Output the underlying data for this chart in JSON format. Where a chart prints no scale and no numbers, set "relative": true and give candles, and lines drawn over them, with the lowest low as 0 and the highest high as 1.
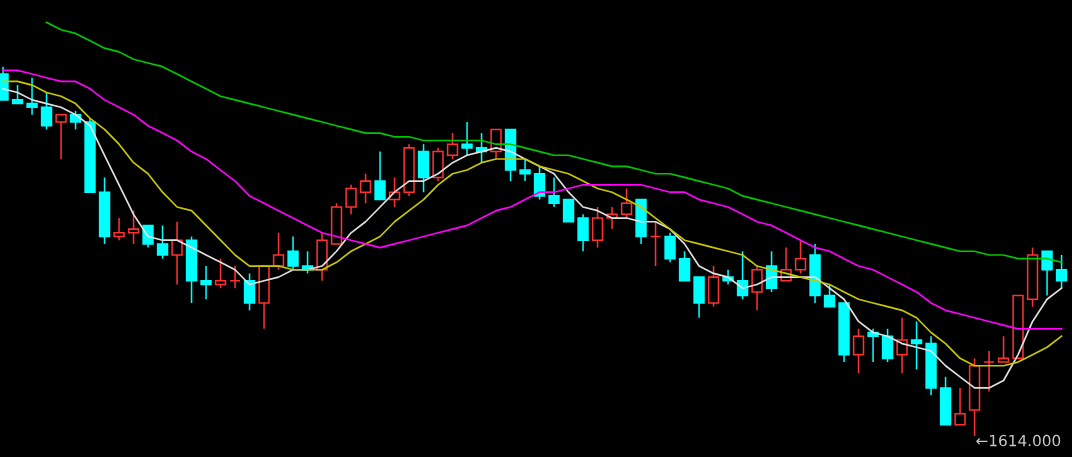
{
  "chart_data": {
    "type": "candlestick",
    "relative": true,
    "categories": [
      null,
      null,
      null,
      null,
      null,
      null,
      null,
      null,
      null,
      null,
      null,
      null,
      null,
      null,
      null,
      null,
      null,
      null,
      null,
      null,
      null,
      null,
      null,
      null,
      null,
      null,
      null,
      null,
      null,
      null,
      null,
      null,
      null,
      null,
      null,
      null,
      null,
      null,
      null,
      null,
      null,
      null,
      null,
      null,
      null,
      null,
      null,
      null,
      null,
      null,
      null,
      null,
      null,
      null,
      null,
      null,
      null,
      null,
      null,
      null,
      null,
      null,
      null,
      null,
      null,
      null,
      null,
      null,
      null,
      null,
      null,
      null,
      null,
      null
    ],
    "ohlc": [
      [
        0.98,
        1.0,
        0.91,
        0.91
      ],
      [
        0.91,
        0.95,
        0.9,
        0.9
      ],
      [
        0.9,
        0.97,
        0.87,
        0.89
      ],
      [
        0.89,
        0.93,
        0.83,
        0.84
      ],
      [
        0.85,
        0.87,
        0.75,
        0.87
      ],
      [
        0.87,
        0.88,
        0.83,
        0.85
      ],
      [
        0.85,
        0.86,
        0.66,
        0.66
      ],
      [
        0.66,
        0.7,
        0.52,
        0.54
      ],
      [
        0.54,
        0.59,
        0.53,
        0.55
      ],
      [
        0.55,
        0.61,
        0.52,
        0.56
      ],
      [
        0.57,
        0.57,
        0.51,
        0.52
      ],
      [
        0.52,
        0.57,
        0.48,
        0.49
      ],
      [
        0.49,
        0.58,
        0.41,
        0.53
      ],
      [
        0.53,
        0.54,
        0.36,
        0.42
      ],
      [
        0.42,
        0.46,
        0.37,
        0.41
      ],
      [
        0.41,
        0.48,
        0.4,
        0.42
      ],
      [
        0.42,
        0.46,
        0.4,
        0.42
      ],
      [
        0.42,
        0.44,
        0.34,
        0.36
      ],
      [
        0.36,
        0.46,
        0.29,
        0.46
      ],
      [
        0.46,
        0.55,
        0.45,
        0.49
      ],
      [
        0.5,
        0.54,
        0.45,
        0.46
      ],
      [
        0.46,
        0.5,
        0.44,
        0.45
      ],
      [
        0.45,
        0.55,
        0.42,
        0.53
      ],
      [
        0.52,
        0.63,
        0.52,
        0.62
      ],
      [
        0.62,
        0.68,
        0.6,
        0.67
      ],
      [
        0.66,
        0.71,
        0.63,
        0.69
      ],
      [
        0.69,
        0.77,
        0.64,
        0.64
      ],
      [
        0.64,
        0.7,
        0.62,
        0.66
      ],
      [
        0.66,
        0.79,
        0.65,
        0.78
      ],
      [
        0.77,
        0.79,
        0.66,
        0.7
      ],
      [
        0.7,
        0.78,
        0.69,
        0.77
      ],
      [
        0.76,
        0.82,
        0.75,
        0.79
      ],
      [
        0.79,
        0.85,
        0.76,
        0.78
      ],
      [
        0.78,
        0.82,
        0.74,
        0.77
      ],
      [
        0.77,
        0.83,
        0.75,
        0.83
      ],
      [
        0.83,
        0.83,
        0.69,
        0.72
      ],
      [
        0.72,
        0.75,
        0.69,
        0.71
      ],
      [
        0.71,
        0.73,
        0.64,
        0.65
      ],
      [
        0.65,
        0.7,
        0.62,
        0.63
      ],
      [
        0.64,
        0.64,
        0.58,
        0.58
      ],
      [
        0.59,
        0.6,
        0.5,
        0.53
      ],
      [
        0.53,
        0.62,
        0.51,
        0.59
      ],
      [
        0.59,
        0.62,
        0.56,
        0.6
      ],
      [
        0.6,
        0.67,
        0.59,
        0.63
      ],
      [
        0.64,
        0.64,
        0.52,
        0.54
      ],
      [
        0.54,
        0.58,
        0.46,
        0.54
      ],
      [
        0.54,
        0.55,
        0.47,
        0.48
      ],
      [
        0.48,
        0.5,
        0.42,
        0.42
      ],
      [
        0.43,
        0.43,
        0.32,
        0.36
      ],
      [
        0.36,
        0.46,
        0.35,
        0.43
      ],
      [
        0.43,
        0.45,
        0.41,
        0.42
      ],
      [
        0.42,
        0.5,
        0.37,
        0.38
      ],
      [
        0.39,
        0.46,
        0.34,
        0.45
      ],
      [
        0.46,
        0.5,
        0.39,
        0.4
      ],
      [
        0.42,
        0.51,
        0.42,
        0.45
      ],
      [
        0.45,
        0.53,
        0.44,
        0.48
      ],
      [
        0.49,
        0.52,
        0.36,
        0.38
      ],
      [
        0.38,
        0.41,
        0.35,
        0.35
      ],
      [
        0.36,
        0.36,
        0.2,
        0.22
      ],
      [
        0.22,
        0.29,
        0.17,
        0.27
      ],
      [
        0.28,
        0.29,
        0.2,
        0.27
      ],
      [
        0.27,
        0.29,
        0.2,
        0.21
      ],
      [
        0.22,
        0.32,
        0.17,
        0.26
      ],
      [
        0.26,
        0.31,
        0.18,
        0.25
      ],
      [
        0.25,
        0.27,
        0.11,
        0.13
      ],
      [
        0.13,
        0.16,
        0.03,
        0.03
      ],
      [
        0.03,
        0.13,
        0.03,
        0.06
      ],
      [
        0.07,
        0.21,
        0.0,
        0.19
      ],
      [
        0.2,
        0.23,
        0.12,
        0.2
      ],
      [
        0.2,
        0.27,
        0.2,
        0.21
      ],
      [
        0.21,
        0.38,
        0.21,
        0.38
      ],
      [
        0.37,
        0.51,
        0.35,
        0.49
      ],
      [
        0.5,
        0.5,
        0.38,
        0.45
      ],
      [
        0.45,
        0.49,
        0.4,
        0.42
      ]
    ],
    "colors": [
      "#00ffff",
      "#00ffff",
      "#00ffff",
      "#00ffff",
      "#ff3232",
      "#00ffff",
      "#00ffff",
      "#00ffff",
      "#ff3232",
      "#ff3232",
      "#00ffff",
      "#00ffff",
      "#ff3232",
      "#00ffff",
      "#00ffff",
      "#ff3232",
      "#ff3232",
      "#00ffff",
      "#ff3232",
      "#ff3232",
      "#00ffff",
      "#00ffff",
      "#ff3232",
      "#ff3232",
      "#ff3232",
      "#ff3232",
      "#00ffff",
      "#ff3232",
      "#ff3232",
      "#00ffff",
      "#ff3232",
      "#ff3232",
      "#00ffff",
      "#00ffff",
      "#ff3232",
      "#00ffff",
      "#00ffff",
      "#00ffff",
      "#00ffff",
      "#00ffff",
      "#00ffff",
      "#ff3232",
      "#ff3232",
      "#ff3232",
      "#00ffff",
      "#ff3232",
      "#00ffff",
      "#00ffff",
      "#00ffff",
      "#ff3232",
      "#00ffff",
      "#00ffff",
      "#ff3232",
      "#00ffff",
      "#ff3232",
      "#ff3232",
      "#00ffff",
      "#00ffff",
      "#00ffff",
      "#ff3232",
      "#00ffff",
      "#00ffff",
      "#ff3232",
      "#00ffff",
      "#00ffff",
      "#00ffff",
      "#ff3232",
      "#ff3232",
      "#ff3232",
      "#ff3232",
      "#ff3232",
      "#ff3232",
      "#00ffff",
      "#00ffff"
    ],
    "series": [
      {
        "type": "line",
        "color": "#e0e0e0",
        "values": [
          0.94,
          0.93,
          0.91,
          0.9,
          0.89,
          0.87,
          0.84,
          0.76,
          0.68,
          0.6,
          0.54,
          0.53,
          0.53,
          0.51,
          0.49,
          0.47,
          0.45,
          0.41,
          0.42,
          0.43,
          0.45,
          0.45,
          0.46,
          0.5,
          0.55,
          0.58,
          0.62,
          0.66,
          0.69,
          0.69,
          0.71,
          0.74,
          0.76,
          0.77,
          0.78,
          0.77,
          0.75,
          0.73,
          0.71,
          0.66,
          0.62,
          0.61,
          0.59,
          0.59,
          0.58,
          0.58,
          0.56,
          0.52,
          0.46,
          0.44,
          0.43,
          0.4,
          0.41,
          0.43,
          0.43,
          0.43,
          0.43,
          0.4,
          0.37,
          0.31,
          0.28,
          0.27,
          0.25,
          0.24,
          0.23,
          0.19,
          0.16,
          0.13,
          0.13,
          0.15,
          0.22,
          0.31,
          0.37,
          0.4
        ]
      },
      {
        "type": "line",
        "color": "#c8c800",
        "values": [
          0.96,
          0.96,
          0.95,
          0.93,
          0.92,
          0.9,
          0.86,
          0.83,
          0.79,
          0.74,
          0.71,
          0.66,
          0.62,
          0.61,
          0.57,
          0.53,
          0.49,
          0.46,
          0.46,
          0.46,
          0.45,
          0.45,
          0.45,
          0.47,
          0.5,
          0.52,
          0.54,
          0.58,
          0.61,
          0.64,
          0.68,
          0.71,
          0.72,
          0.74,
          0.75,
          0.75,
          0.75,
          0.73,
          0.72,
          0.71,
          0.69,
          0.67,
          0.66,
          0.64,
          0.62,
          0.59,
          0.56,
          0.53,
          0.52,
          0.51,
          0.5,
          0.49,
          0.46,
          0.45,
          0.44,
          0.43,
          0.42,
          0.41,
          0.39,
          0.37,
          0.36,
          0.35,
          0.34,
          0.32,
          0.28,
          0.25,
          0.21,
          0.19,
          0.19,
          0.19,
          0.2,
          0.22,
          0.24,
          0.27
        ]
      },
      {
        "type": "line",
        "color": "#ff00ff",
        "values": [
          0.99,
          0.99,
          0.98,
          0.97,
          0.96,
          0.96,
          0.94,
          0.91,
          0.89,
          0.87,
          0.84,
          0.82,
          0.8,
          0.77,
          0.75,
          0.72,
          0.69,
          0.65,
          0.63,
          0.61,
          0.59,
          0.57,
          0.55,
          0.54,
          0.53,
          0.52,
          0.51,
          0.52,
          0.53,
          0.54,
          0.55,
          0.56,
          0.57,
          0.59,
          0.61,
          0.62,
          0.64,
          0.66,
          0.66,
          0.67,
          0.68,
          0.68,
          0.68,
          0.68,
          0.68,
          0.67,
          0.66,
          0.66,
          0.64,
          0.63,
          0.62,
          0.6,
          0.58,
          0.57,
          0.55,
          0.53,
          0.51,
          0.5,
          0.48,
          0.46,
          0.45,
          0.43,
          0.41,
          0.39,
          0.36,
          0.34,
          0.33,
          0.32,
          0.31,
          0.3,
          0.29,
          0.29,
          0.29,
          0.29
        ]
      },
      {
        "type": "line",
        "color": "#00c800",
        "values": [
          null,
          null,
          null,
          1.12,
          1.1,
          1.09,
          1.07,
          1.05,
          1.04,
          1.02,
          1.01,
          1.0,
          0.98,
          0.96,
          0.94,
          0.92,
          0.91,
          0.9,
          0.89,
          0.88,
          0.87,
          0.86,
          0.85,
          0.84,
          0.83,
          0.82,
          0.82,
          0.81,
          0.81,
          0.8,
          0.8,
          0.8,
          0.8,
          0.8,
          0.79,
          0.79,
          0.78,
          0.77,
          0.76,
          0.76,
          0.75,
          0.74,
          0.73,
          0.73,
          0.72,
          0.71,
          0.71,
          0.7,
          0.69,
          0.68,
          0.67,
          0.65,
          0.64,
          0.63,
          0.62,
          0.61,
          0.6,
          0.59,
          0.58,
          0.57,
          0.56,
          0.55,
          0.54,
          0.53,
          0.52,
          0.51,
          0.5,
          0.5,
          0.49,
          0.49,
          0.48,
          0.48,
          0.48,
          0.47
        ]
      }
    ],
    "annotations": [
      "←1614.000"
    ]
  }
}
